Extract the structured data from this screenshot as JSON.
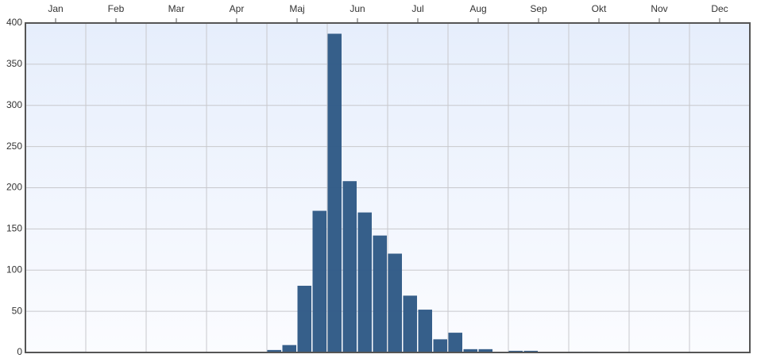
{
  "chart_data": {
    "type": "bar",
    "categories": [
      "Jan",
      "Feb",
      "Mar",
      "Apr",
      "Maj",
      "Jun",
      "Jul",
      "Aug",
      "Sep",
      "Okt",
      "Nov",
      "Dec"
    ],
    "values": [
      [
        0,
        0,
        0,
        1
      ],
      [
        0,
        0,
        0,
        0
      ],
      [
        0,
        0,
        0,
        0
      ],
      [
        0,
        0,
        0,
        0
      ],
      [
        3,
        9,
        81,
        172
      ],
      [
        387,
        208,
        170,
        142
      ],
      [
        120,
        69,
        52,
        16
      ],
      [
        24,
        4,
        4,
        0
      ],
      [
        2,
        2,
        0,
        0
      ],
      [
        1,
        1,
        0,
        0
      ],
      [
        0,
        0,
        0,
        0
      ],
      [
        0,
        0,
        0,
        0
      ]
    ],
    "color": "#2f5a86",
    "ylim": [
      0,
      400
    ],
    "yticks": [
      0,
      50,
      100,
      150,
      200,
      250,
      300,
      350,
      400
    ],
    "grid": true
  }
}
